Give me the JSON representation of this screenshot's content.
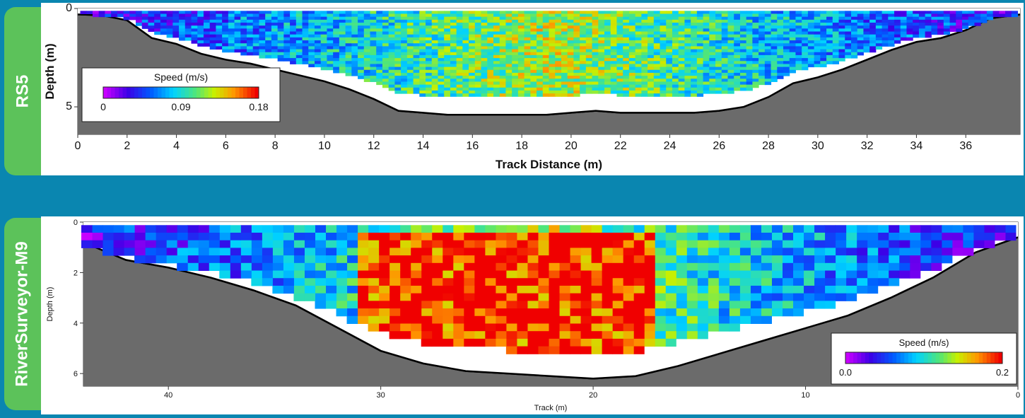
{
  "panels": [
    {
      "tab_label": "RS5"
    },
    {
      "tab_label": "RiverSurveyor-M9"
    }
  ],
  "chart_data": [
    {
      "type": "heatmap",
      "title": "",
      "xlabel": "Track Distance (m)",
      "ylabel": "Depth (m)",
      "xlim": [
        0,
        38.2
      ],
      "ylim": [
        6.4,
        0
      ],
      "x_ticks": [
        "0",
        "2",
        "4",
        "6",
        "8",
        "10",
        "12",
        "14",
        "16",
        "18",
        "20",
        "22",
        "24",
        "26",
        "28",
        "30",
        "32",
        "34",
        "36"
      ],
      "y_ticks": [
        "0",
        "5"
      ],
      "colorbar": {
        "label": "Speed (m/s)",
        "min": 0,
        "max": 0.18,
        "ticks": [
          "0",
          "0.09",
          "0.18"
        ],
        "placement": "bottom-left"
      },
      "bed_profile": {
        "x": [
          0,
          1,
          2,
          3,
          4,
          5,
          6,
          7,
          8,
          9,
          10,
          11,
          12,
          13,
          14,
          15,
          16,
          17,
          18,
          19,
          20,
          21,
          22,
          23,
          24,
          25,
          26,
          27,
          28,
          29,
          30,
          31,
          32,
          33,
          34,
          35,
          36,
          37,
          38.2
        ],
        "depth": [
          0.3,
          0.35,
          0.6,
          1.5,
          1.8,
          2.3,
          2.6,
          2.8,
          3.1,
          3.4,
          3.7,
          4.1,
          4.6,
          5.2,
          5.3,
          5.4,
          5.4,
          5.4,
          5.4,
          5.4,
          5.3,
          5.2,
          5.3,
          5.3,
          5.3,
          5.3,
          5.2,
          5.0,
          4.5,
          3.8,
          3.5,
          3.1,
          2.6,
          2.1,
          1.7,
          1.5,
          1.1,
          0.5,
          0.3
        ]
      },
      "velocity_bins": {
        "cell_size_m": 0.25,
        "max_speed_m_s": 0.18,
        "speed_pattern": "low near banks (0-0.05), mid-channel 0.09-0.16, peaking near 18-24 m"
      }
    },
    {
      "type": "heatmap",
      "title": "",
      "xlabel": "Track (m)",
      "ylabel": "Depth (m)",
      "xlim": [
        44,
        0
      ],
      "ylim": [
        6.5,
        0
      ],
      "x_ticks": [
        "40",
        "30",
        "20",
        "10",
        "0"
      ],
      "y_ticks": [
        "0",
        "2",
        "4",
        "6"
      ],
      "colorbar": {
        "label": "Speed (m/s)",
        "min": 0.0,
        "max": 0.2,
        "ticks": [
          "0.0",
          "0.2"
        ],
        "placement": "bottom-right"
      },
      "bed_profile": {
        "x": [
          44,
          42,
          40,
          38,
          36,
          34,
          32,
          30,
          28,
          26,
          24,
          22,
          20,
          18,
          16,
          14,
          12,
          10,
          8,
          6,
          4,
          2,
          0
        ],
        "depth": [
          0.8,
          1.5,
          1.8,
          2.2,
          2.7,
          3.3,
          4.2,
          5.1,
          5.6,
          5.9,
          6.0,
          6.1,
          6.2,
          6.1,
          5.7,
          5.2,
          4.7,
          4.2,
          3.7,
          3.0,
          2.2,
          1.2,
          0.6
        ]
      },
      "velocity_bins": {
        "cell_size_m": 0.5,
        "max_speed_m_s": 0.2,
        "speed_pattern": "banks 0.03-0.1, center section 17-31 m saturated near 0.2"
      }
    }
  ]
}
